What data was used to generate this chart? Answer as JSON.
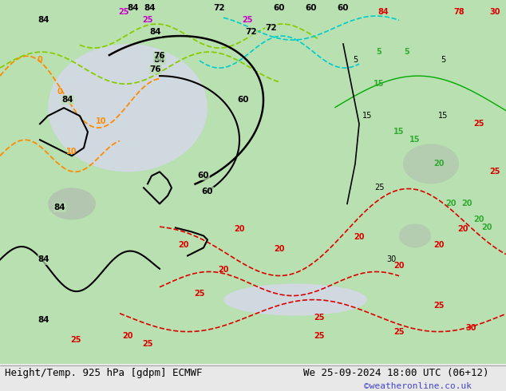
{
  "title_left": "Height/Temp. 925 hPa [gdpm] ECMWF",
  "title_right": "We 25-09-2024 18:00 UTC (06+12)",
  "credit": "©weatheronline.co.uk",
  "background_color": "#f0f0f0",
  "fig_width": 6.34,
  "fig_height": 4.9,
  "dpi": 100,
  "title_fontsize": 9,
  "credit_fontsize": 8,
  "credit_color": "#4444cc",
  "title_color": "#000000"
}
